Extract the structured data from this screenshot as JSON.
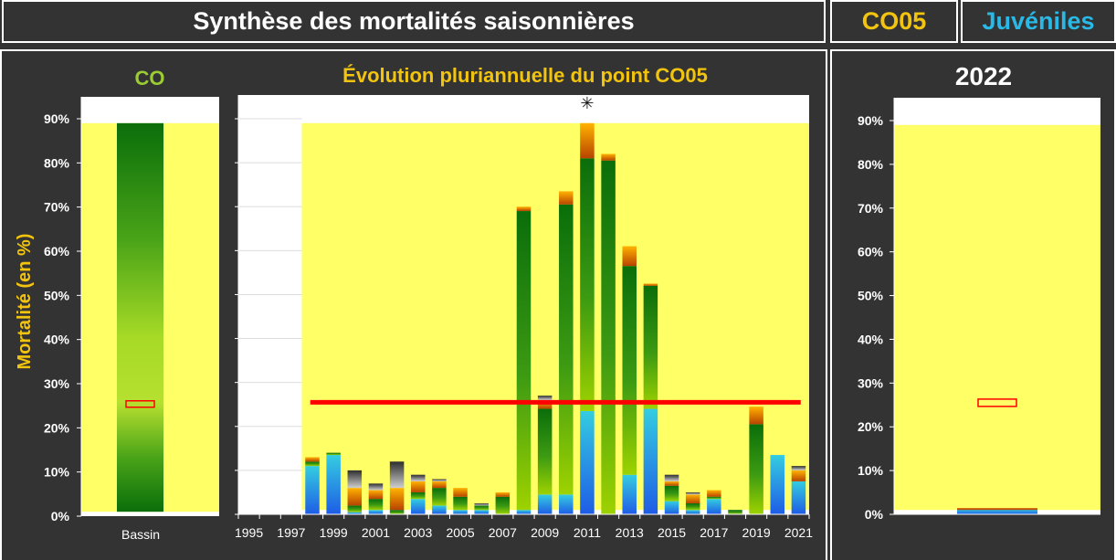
{
  "header": {
    "title": "Synthèse des mortalités saisonnières",
    "point": "CO05",
    "stage": "Juvéniles"
  },
  "colors": {
    "background": "#333333",
    "header_text": "#ffffff",
    "point_text": "#f2c40f",
    "stage_text": "#2ab9e6",
    "plot_bg": "#ffff66",
    "reference_line": "#ff0000",
    "chart_title": "#f2c40f",
    "co_label": "#9acd32"
  },
  "chart_data": [
    {
      "id": "basin",
      "type": "bar",
      "title": "CO",
      "ylabel": "Mortalité (en %)",
      "categories": [
        "Bassin"
      ],
      "yticks": [
        "0%",
        "10%",
        "20%",
        "30%",
        "40%",
        "50%",
        "60%",
        "70%",
        "80%",
        "90%"
      ],
      "ylim": [
        0,
        90
      ],
      "range": [
        1,
        89
      ],
      "marker": 25.5,
      "grid": false
    },
    {
      "id": "evolution",
      "type": "bar",
      "stacked": true,
      "title": "Évolution pluriannuelle du point CO05",
      "x_tick_labels": [
        "1995",
        "1997",
        "1999",
        "2001",
        "2003",
        "2005",
        "2007",
        "2009",
        "2011",
        "2013",
        "2015",
        "2017",
        "2019",
        "2021"
      ],
      "categories": [
        1998,
        1999,
        2000,
        2001,
        2002,
        2003,
        2004,
        2005,
        2006,
        2007,
        2008,
        2009,
        2010,
        2011,
        2012,
        2013,
        2014,
        2015,
        2016,
        2017,
        2018,
        2019,
        2020,
        2021
      ],
      "xlim": [
        1994.5,
        2021.5
      ],
      "ylim": [
        0,
        90
      ],
      "shaded_from": 1997.5,
      "reference_value": 25.5,
      "outlier_marker": {
        "year": 2011,
        "symbol": "✳"
      },
      "grid": true,
      "segments": {
        "1998": [
          [
            "blue",
            11
          ],
          [
            "green",
            1
          ],
          [
            "orange",
            1
          ]
        ],
        "1999": [
          [
            "blue",
            13.5
          ],
          [
            "green",
            0.5
          ]
        ],
        "2000": [
          [
            "blue",
            0.5
          ],
          [
            "green",
            1.5
          ],
          [
            "orange",
            4
          ],
          [
            "grey",
            4
          ]
        ],
        "2001": [
          [
            "blue",
            1
          ],
          [
            "green",
            2.5
          ],
          [
            "orange",
            2
          ],
          [
            "grey",
            1.5
          ]
        ],
        "2002": [
          [
            "green",
            1
          ],
          [
            "orange",
            5
          ],
          [
            "grey",
            6
          ]
        ],
        "2003": [
          [
            "blue",
            3.5
          ],
          [
            "green",
            1.5
          ],
          [
            "orange",
            2.5
          ],
          [
            "grey",
            1.5
          ]
        ],
        "2004": [
          [
            "blue",
            2
          ],
          [
            "green",
            4
          ],
          [
            "orange",
            1.5
          ],
          [
            "grey",
            0.5
          ]
        ],
        "2005": [
          [
            "blue",
            1
          ],
          [
            "green",
            3
          ],
          [
            "orange",
            2
          ]
        ],
        "2006": [
          [
            "blue",
            1
          ],
          [
            "green",
            1
          ],
          [
            "grey",
            0.5
          ]
        ],
        "2007": [
          [
            "green",
            4
          ],
          [
            "orange",
            1
          ]
        ],
        "2008": [
          [
            "blue",
            1
          ],
          [
            "green",
            68
          ],
          [
            "orange",
            1
          ]
        ],
        "2009": [
          [
            "blue",
            4.5
          ],
          [
            "green",
            19.5
          ],
          [
            "orange",
            2
          ],
          [
            "grey",
            1
          ]
        ],
        "2010": [
          [
            "blue",
            4.5
          ],
          [
            "green",
            66
          ],
          [
            "orange",
            3
          ]
        ],
        "2011": [
          [
            "blue",
            23.5
          ],
          [
            "green",
            57.5
          ],
          [
            "orange",
            8
          ]
        ],
        "2012": [
          [
            "green",
            80.5
          ],
          [
            "orange",
            1.5
          ]
        ],
        "2013": [
          [
            "blue",
            9
          ],
          [
            "green",
            47.5
          ],
          [
            "orange",
            4.5
          ]
        ],
        "2014": [
          [
            "blue",
            24
          ],
          [
            "green",
            28
          ],
          [
            "orange",
            0.5
          ]
        ],
        "2015": [
          [
            "blue",
            3
          ],
          [
            "green",
            3.5
          ],
          [
            "orange",
            1
          ],
          [
            "grey",
            1.5
          ]
        ],
        "2016": [
          [
            "blue",
            1
          ],
          [
            "green",
            1.5
          ],
          [
            "orange",
            2
          ],
          [
            "grey",
            0.5
          ]
        ],
        "2017": [
          [
            "blue",
            3.5
          ],
          [
            "green",
            0.5
          ],
          [
            "orange",
            1.5
          ]
        ],
        "2018": [
          [
            "green",
            1
          ]
        ],
        "2019": [
          [
            "green",
            20.5
          ],
          [
            "orange",
            4
          ]
        ],
        "2020": [
          [
            "blue",
            13.5
          ]
        ],
        "2021": [
          [
            "blue",
            7.5
          ],
          [
            "orange",
            2.5
          ],
          [
            "grey",
            1
          ]
        ]
      }
    },
    {
      "id": "current",
      "type": "bar",
      "title": "2022",
      "yticks": [
        "0%",
        "10%",
        "20%",
        "30%",
        "40%",
        "50%",
        "60%",
        "70%",
        "80%",
        "90%"
      ],
      "ylim": [
        0,
        90
      ],
      "shaded_range": [
        1,
        89
      ],
      "marker": 25.5,
      "bar_value": 1,
      "grid": false
    }
  ]
}
